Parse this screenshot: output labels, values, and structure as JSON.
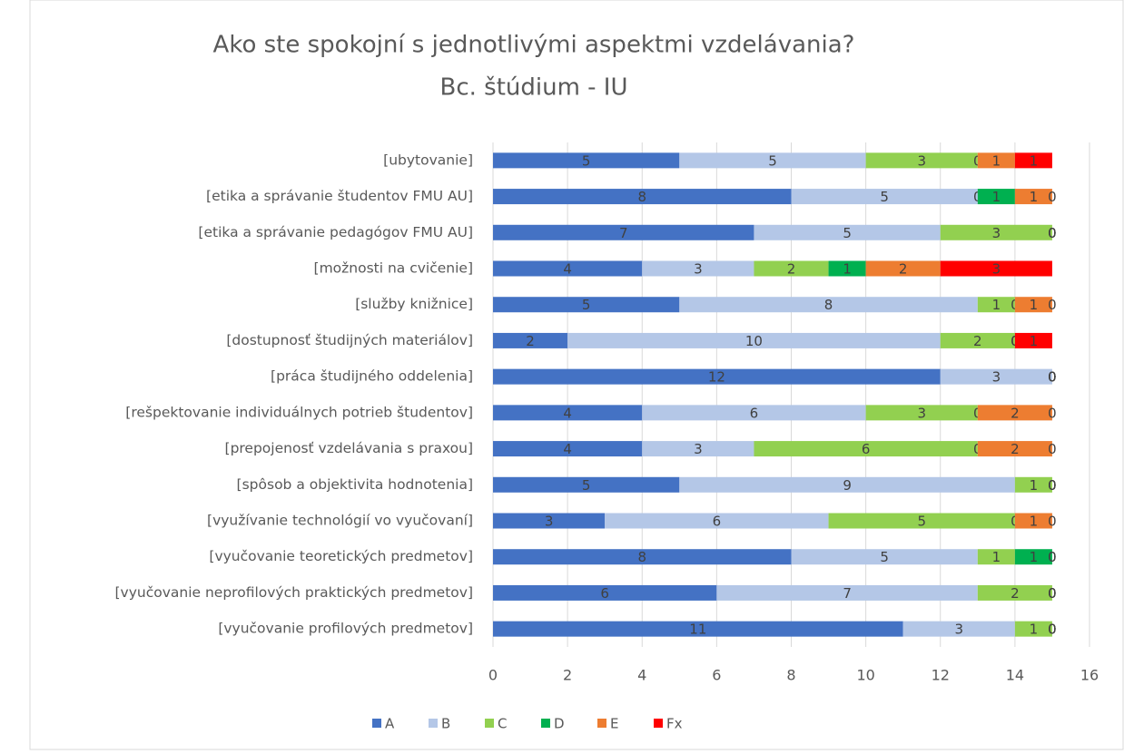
{
  "chart_data": {
    "type": "stacked_bar_horizontal",
    "title": "Ako ste spokojní s jednotlivými aspektmi vzdelávania?",
    "subtitle": "Bc. štúdium - IU",
    "categories": [
      "[ubytovanie]",
      "[etika a správanie študentov FMU AU]",
      "[etika a správanie pedagógov FMU AU]",
      "[možnosti na cvičenie]",
      "[služby knižnice]",
      "[dostupnosť študijných materiálov]",
      "[práca študijného oddelenia]",
      "[rešpektovanie individuálnych potrieb študentov]",
      "[prepojenosť vzdelávania s praxou]",
      "[spôsob a objektivita hodnotenia]",
      "[využívanie technológií vo vyučovaní]",
      "[vyučovanie teoretických predmetov]",
      "[vyučovanie neprofilových praktických predmetov]",
      "[vyučovanie profilových predmetov]"
    ],
    "series": [
      {
        "name": "A",
        "color": "#4472c4",
        "values": [
          5,
          8,
          7,
          4,
          5,
          2,
          12,
          4,
          4,
          5,
          3,
          8,
          6,
          11
        ]
      },
      {
        "name": "B",
        "color": "#b4c7e7",
        "values": [
          5,
          5,
          5,
          3,
          8,
          10,
          3,
          6,
          3,
          9,
          6,
          5,
          7,
          3
        ]
      },
      {
        "name": "C",
        "color": "#92d050",
        "values": [
          3,
          0,
          3,
          2,
          1,
          2,
          0,
          3,
          6,
          1,
          5,
          1,
          2,
          1
        ]
      },
      {
        "name": "D",
        "color": "#00b050",
        "values": [
          0,
          1,
          0,
          1,
          0,
          0,
          0,
          0,
          0,
          0,
          0,
          1,
          0,
          0
        ]
      },
      {
        "name": "E",
        "color": "#ed7d31",
        "values": [
          1,
          1,
          0,
          2,
          1,
          0,
          0,
          2,
          2,
          0,
          1,
          0,
          0,
          0
        ]
      },
      {
        "name": "Fx",
        "color": "#ff0000",
        "values": [
          1,
          0,
          0,
          3,
          0,
          1,
          0,
          0,
          0,
          0,
          0,
          0,
          0,
          0
        ]
      }
    ],
    "xlim": [
      0,
      16
    ],
    "xticks": [
      0,
      2,
      4,
      6,
      8,
      10,
      12,
      14,
      16
    ],
    "grid": true,
    "legend": "bottom"
  }
}
